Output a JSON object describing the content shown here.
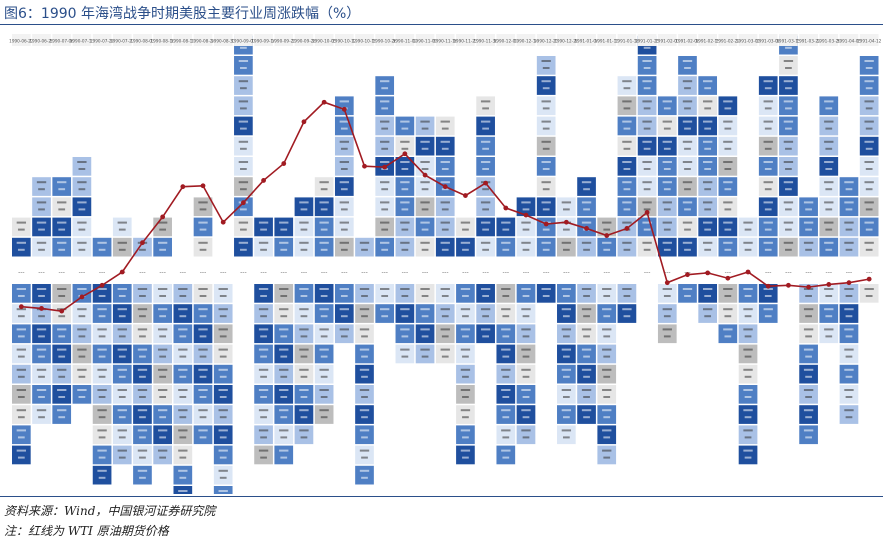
{
  "figure": {
    "title": "图6：1990 年海湾战争时期美股主要行业周涨跌幅（%）",
    "source": "资料来源：Wind，中国银河证券研究院",
    "note": "注：红线为 WTI 原油期货价格"
  },
  "colors": {
    "line": "#a11b22",
    "cell_dark": "#1f4f9e",
    "cell_mid": "#4f7fc4",
    "cell_light": "#a9c1e6",
    "cell_pale": "#dbe6f5",
    "cell_gray": "#bdbdbd",
    "cell_lightgray": "#e6e6e6",
    "header_bg": "#f2f2f2",
    "zero_band": "#ffffff"
  },
  "chart_data": {
    "type": "heatmap",
    "description_of_axes": "",
    "weeks": [
      "1990-06-22",
      "1990-06-29",
      "1990-07-06",
      "1990-07-13",
      "1990-07-20",
      "1990-07-27",
      "1990-08-03",
      "1990-08-10",
      "1990-08-17",
      "1990-08-24",
      "1990-08-31",
      "1990-09-07",
      "1990-09-14",
      "1990-09-21",
      "1990-09-28",
      "1990-10-05",
      "1990-10-12",
      "1990-10-19",
      "1990-10-26",
      "1990-11-02",
      "1990-11-09",
      "1990-11-16",
      "1990-11-23",
      "1990-11-30",
      "1990-12-07",
      "1990-12-14",
      "1990-12-21",
      "1990-12-28",
      "1991-01-04",
      "1991-01-11",
      "1991-01-18",
      "1991-01-25",
      "1991-02-01",
      "1991-02-08",
      "1991-02-15",
      "1991-02-22",
      "1991-03-01",
      "1991-03-08",
      "1991-03-15",
      "1991-03-22",
      "1991-03-29",
      "1991-04-05",
      "1991-04-12"
    ],
    "positive_counts": [
      2,
      4,
      4,
      5,
      1,
      2,
      1,
      2,
      0,
      3,
      0,
      11,
      2,
      2,
      3,
      4,
      8,
      1,
      9,
      7,
      7,
      7,
      2,
      8,
      2,
      3,
      10,
      3,
      4,
      2,
      9,
      11,
      8,
      10,
      9,
      8,
      2,
      9,
      11,
      3,
      8,
      4,
      10
    ],
    "negative_counts": [
      9,
      7,
      7,
      6,
      10,
      9,
      10,
      9,
      11,
      8,
      11,
      0,
      9,
      9,
      8,
      7,
      3,
      10,
      2,
      4,
      4,
      4,
      9,
      3,
      9,
      8,
      1,
      8,
      7,
      9,
      2,
      0,
      3,
      1,
      2,
      3,
      9,
      2,
      0,
      8,
      3,
      7,
      1
    ],
    "sample_cells": [
      {
        "week": 0,
        "sector": "科技",
        "value": 0.35
      },
      {
        "week": 1,
        "sector": "日常消费",
        "value": 1.24
      },
      {
        "week": 2,
        "sector": "金融",
        "value": 2.41
      },
      {
        "week": 3,
        "sector": "工业",
        "value": 0.19
      },
      {
        "week": 11,
        "sector": "科技",
        "value": 4.34
      },
      {
        "week": 16,
        "sector": "日常消费",
        "value": 3.11
      },
      {
        "week": 19,
        "sector": "金融",
        "value": 4.89
      },
      {
        "week": 22,
        "sector": "能源",
        "value": 4.25
      },
      {
        "week": 31,
        "sector": "材料",
        "value": 6.04
      },
      {
        "week": 42,
        "sector": "科技",
        "value": 4.89
      }
    ],
    "oil_price_series": {
      "name": "WTI 原油期货价格",
      "values": [
        17.4,
        17.2,
        16.9,
        18.5,
        19.8,
        21.3,
        24.6,
        27.5,
        30.9,
        31.0,
        26.9,
        29.1,
        31.6,
        33.5,
        38.2,
        40.4,
        39.6,
        33.2,
        33.1,
        34.6,
        32.2,
        30.9,
        29.9,
        31.3,
        28.5,
        27.7,
        26.7,
        26.9,
        26.2,
        25.4,
        26.2,
        28.0,
        20.1,
        21.0,
        21.2,
        20.6,
        21.3,
        19.7,
        19.8,
        19.6,
        19.9,
        20.1,
        20.5
      ]
    }
  }
}
